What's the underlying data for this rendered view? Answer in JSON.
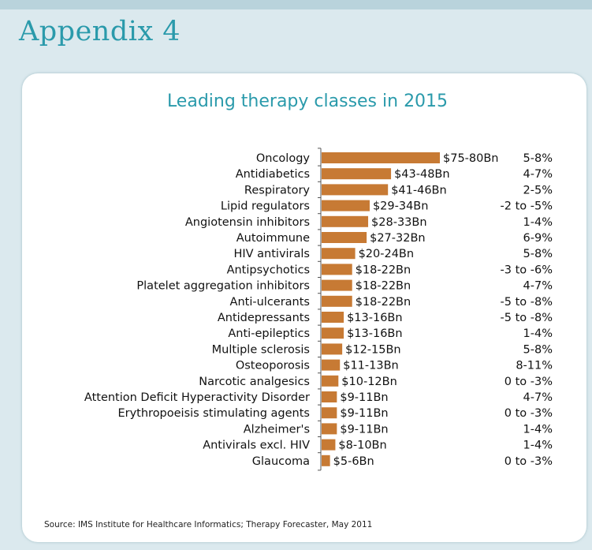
{
  "page": {
    "heading": "Appendix 4",
    "source": "Source: IMS Institute for Healthcare Informatics; Therapy Forecaster, May 2011"
  },
  "colors": {
    "bar": "#c77a34",
    "accent": "#2a9aab",
    "panel_bg": "#ffffff",
    "page_bg": "#dbe9ee"
  },
  "chart_data": {
    "type": "bar",
    "orientation": "horizontal",
    "title": "Leading therapy classes in 2015",
    "xlabel": "",
    "ylabel": "",
    "grid": false,
    "categories": [
      "Oncology",
      "Antidiabetics",
      "Respiratory",
      "Lipid regulators",
      "Angiotensin inhibitors",
      "Autoimmune",
      "HIV antivirals",
      "Antipsychotics",
      "Platelet aggregation inhibitors",
      "Anti-ulcerants",
      "Antidepressants",
      "Anti-epileptics",
      "Multiple sclerosis",
      "Osteoporosis",
      "Narcotic analgesics",
      "Attention Deficit Hyperactivity Disorder",
      "Erythropoeisis stimulating agents",
      "Alzheimer's",
      "Antivirals excl. HIV",
      "Glaucoma"
    ],
    "values": [
      77.5,
      45.5,
      43.5,
      31.5,
      30.5,
      29.5,
      22,
      20,
      20,
      20,
      14.5,
      14.5,
      13.5,
      12,
      11,
      10,
      10,
      10,
      9,
      5.5
    ],
    "value_labels": [
      "$75-80Bn",
      "$43-48Bn",
      "$41-46Bn",
      "$29-34Bn",
      "$28-33Bn",
      "$27-32Bn",
      "$20-24Bn",
      "$18-22Bn",
      "$18-22Bn",
      "$18-22Bn",
      "$13-16Bn",
      "$13-16Bn",
      "$12-15Bn",
      "$11-13Bn",
      "$10-12Bn",
      "$9-11Bn",
      "$9-11Bn",
      "$9-11Bn",
      "$8-10Bn",
      "$5-6Bn"
    ],
    "growth_labels": [
      "5-8%",
      "4-7%",
      "2-5%",
      "-2 to -5%",
      "1-4%",
      "6-9%",
      "5-8%",
      "-3 to -6%",
      "4-7%",
      "-5 to -8%",
      "-5 to -8%",
      "1-4%",
      "5-8%",
      "8-11%",
      "0 to -3%",
      "4-7%",
      "0 to -3%",
      "1-4%",
      "1-4%",
      "0 to -3%"
    ],
    "xlim": [
      0,
      80
    ]
  }
}
